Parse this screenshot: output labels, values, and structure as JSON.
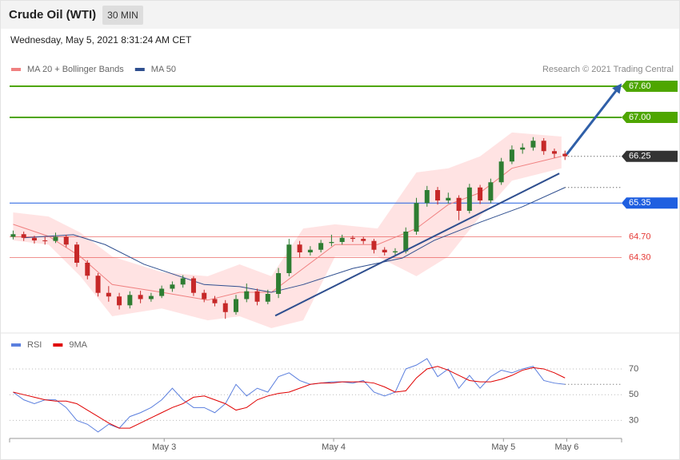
{
  "header": {
    "title": "Crude Oil (WTI)",
    "interval": "30 MIN",
    "datetime": "Wednesday, May 5, 2021 8:31:24 AM CET"
  },
  "chart_data": [
    {
      "type": "candlestick",
      "credit": "Research © 2021 Trading Central",
      "xlim": [
        0,
        173
      ],
      "ylim": [
        63.0,
        68.2
      ],
      "up_color": "#2e7d32",
      "down_color": "#c62828",
      "candles": {
        "x": [
          1,
          4,
          7,
          10,
          13,
          16,
          19,
          22,
          25,
          28,
          31,
          34,
          37,
          40,
          43,
          46,
          49,
          52,
          55,
          58,
          61,
          64,
          67,
          70,
          73,
          76,
          79,
          82,
          85,
          88,
          91,
          94,
          97,
          100,
          103,
          106,
          109,
          112,
          115,
          118,
          121,
          124,
          127,
          130,
          133,
          136,
          139,
          142,
          145,
          148,
          151,
          154,
          157
        ],
        "ohlc": [
          [
            64.7,
            64.82,
            64.65,
            64.75
          ],
          [
            64.75,
            64.8,
            64.62,
            64.68
          ],
          [
            64.68,
            64.72,
            64.57,
            64.63
          ],
          [
            64.63,
            64.7,
            64.55,
            64.62
          ],
          [
            64.62,
            64.78,
            64.58,
            64.7
          ],
          [
            64.7,
            64.74,
            64.5,
            64.55
          ],
          [
            64.55,
            64.6,
            64.12,
            64.2
          ],
          [
            64.2,
            64.25,
            63.88,
            63.95
          ],
          [
            63.95,
            64.0,
            63.55,
            63.62
          ],
          [
            63.62,
            63.75,
            63.45,
            63.55
          ],
          [
            63.55,
            63.62,
            63.3,
            63.38
          ],
          [
            63.38,
            63.65,
            63.32,
            63.58
          ],
          [
            63.58,
            63.66,
            63.42,
            63.5
          ],
          [
            63.5,
            63.62,
            63.45,
            63.56
          ],
          [
            63.56,
            63.76,
            63.52,
            63.7
          ],
          [
            63.7,
            63.84,
            63.64,
            63.78
          ],
          [
            63.78,
            63.96,
            63.72,
            63.9
          ],
          [
            63.9,
            63.94,
            63.56,
            63.62
          ],
          [
            63.62,
            63.68,
            63.44,
            63.5
          ],
          [
            63.5,
            63.56,
            63.36,
            63.42
          ],
          [
            63.42,
            63.48,
            63.12,
            63.25
          ],
          [
            63.25,
            63.58,
            63.2,
            63.5
          ],
          [
            63.5,
            63.8,
            63.44,
            63.65
          ],
          [
            63.65,
            63.7,
            63.38,
            63.45
          ],
          [
            63.45,
            63.68,
            63.4,
            63.6
          ],
          [
            63.6,
            64.1,
            63.52,
            64.0
          ],
          [
            64.0,
            64.66,
            63.94,
            64.55
          ],
          [
            64.55,
            64.62,
            64.3,
            64.4
          ],
          [
            64.4,
            64.52,
            64.34,
            64.45
          ],
          [
            64.45,
            64.64,
            64.4,
            64.58
          ],
          [
            64.58,
            64.74,
            64.52,
            64.6
          ],
          [
            64.6,
            64.74,
            64.55,
            64.68
          ],
          [
            64.68,
            64.72,
            64.6,
            64.66
          ],
          [
            64.66,
            64.7,
            64.56,
            64.62
          ],
          [
            64.62,
            64.66,
            64.38,
            64.45
          ],
          [
            64.45,
            64.5,
            64.34,
            64.4
          ],
          [
            64.4,
            64.48,
            64.35,
            64.42
          ],
          [
            64.42,
            64.88,
            64.38,
            64.8
          ],
          [
            64.8,
            65.45,
            64.74,
            65.35
          ],
          [
            65.35,
            65.68,
            65.28,
            65.6
          ],
          [
            65.6,
            65.66,
            65.32,
            65.4
          ],
          [
            65.4,
            65.55,
            65.34,
            65.45
          ],
          [
            65.45,
            65.5,
            65.02,
            65.2
          ],
          [
            65.2,
            65.72,
            65.15,
            65.65
          ],
          [
            65.65,
            65.7,
            65.33,
            65.4
          ],
          [
            65.4,
            65.82,
            65.35,
            65.75
          ],
          [
            65.75,
            66.22,
            65.7,
            66.15
          ],
          [
            66.15,
            66.46,
            66.1,
            66.38
          ],
          [
            66.38,
            66.5,
            66.3,
            66.42
          ],
          [
            66.42,
            66.62,
            66.36,
            66.55
          ],
          [
            66.55,
            66.6,
            66.28,
            66.35
          ],
          [
            66.35,
            66.4,
            66.22,
            66.3
          ],
          [
            66.3,
            66.36,
            66.18,
            66.25
          ]
        ]
      },
      "series": [
        {
          "name": "MA 20 + Bollinger Bands",
          "color": "#f08080",
          "band_color": "#ffe3e3",
          "x": [
            1,
            11,
            20,
            29,
            43,
            56,
            65,
            74,
            83,
            92,
            104,
            115,
            124,
            133,
            142,
            156
          ],
          "values": [
            64.94,
            64.71,
            64.32,
            63.78,
            63.63,
            63.48,
            63.63,
            63.63,
            64.09,
            64.55,
            64.55,
            64.86,
            65.32,
            65.55,
            66.02,
            66.25
          ],
          "upper": [
            65.17,
            65.09,
            64.78,
            64.32,
            64.02,
            63.94,
            64.17,
            63.94,
            64.86,
            64.94,
            64.86,
            65.94,
            66.02,
            66.25,
            66.71,
            66.63
          ],
          "lower": [
            64.63,
            64.55,
            63.94,
            63.17,
            63.32,
            63.09,
            63.17,
            62.94,
            63.09,
            64.32,
            64.32,
            63.94,
            64.32,
            65.09,
            65.78,
            66.02
          ]
        },
        {
          "name": "MA 50",
          "color": "#2f4f8f",
          "x": [
            4,
            18,
            27,
            38,
            55,
            65,
            74,
            83,
            97,
            111,
            120,
            133,
            145,
            157
          ],
          "values": [
            64.68,
            64.74,
            64.55,
            64.17,
            63.78,
            63.74,
            63.63,
            63.78,
            64.09,
            64.29,
            64.63,
            64.98,
            65.28,
            65.65
          ]
        }
      ],
      "trendline": {
        "x": [
          75.1,
          155.4
        ],
        "values": [
          63.18,
          65.92
        ],
        "color": "#2f4f8f"
      },
      "arrow": {
        "x": [
          157.5,
          172.2
        ],
        "values": [
          66.29,
          67.58
        ],
        "color": "#2f5fa8"
      },
      "levels": [
        {
          "value": 67.6,
          "label": "67.60",
          "color": "#4ea600",
          "style": "box",
          "line": "solid"
        },
        {
          "value": 67.0,
          "label": "67.00",
          "color": "#4ea600",
          "style": "box",
          "line": "solid"
        },
        {
          "value": 66.25,
          "label": "66.25",
          "color": "#333333",
          "style": "box",
          "line": "dotted"
        },
        {
          "value": 65.35,
          "label": "65.35",
          "color": "#1f5fe0",
          "style": "box",
          "line": "solid"
        },
        {
          "value": 64.7,
          "label": "64.70",
          "color": "#e53935",
          "style": "text",
          "line": "solid"
        },
        {
          "value": 64.3,
          "label": "64.30",
          "color": "#e53935",
          "style": "text",
          "line": "solid"
        }
      ]
    },
    {
      "type": "line",
      "xlim": [
        0,
        173
      ],
      "ylim": [
        16,
        83
      ],
      "yticks": [
        30,
        50,
        70
      ],
      "xticks": [
        {
          "value": 43.7,
          "label": "May 3"
        },
        {
          "value": 91.6,
          "label": "May 4"
        },
        {
          "value": 139.6,
          "label": "May 5"
        },
        {
          "value": 157.5,
          "label": "May 6"
        }
      ],
      "series": [
        {
          "name": "RSI",
          "color": "#5b7fde",
          "x": [
            1,
            4,
            7,
            10,
            13,
            16,
            19,
            22,
            25,
            28,
            31,
            34,
            37,
            40,
            43,
            46,
            49,
            52,
            55,
            58,
            61,
            64,
            67,
            70,
            73,
            76,
            79,
            82,
            85,
            88,
            91,
            94,
            97,
            100,
            103,
            106,
            109,
            112,
            115,
            118,
            121,
            124,
            127,
            130,
            133,
            136,
            139,
            142,
            145,
            148,
            151,
            154,
            157
          ],
          "values": [
            52,
            46,
            43,
            46,
            46,
            40,
            30,
            27,
            21,
            27,
            24,
            33,
            36,
            40,
            46,
            55,
            46,
            40,
            40,
            36,
            43,
            58,
            49,
            55,
            52,
            64,
            67,
            61,
            58,
            59,
            60,
            60,
            59,
            61,
            52,
            49,
            52,
            70,
            73,
            78,
            64,
            70,
            55,
            65,
            55,
            64,
            69,
            67,
            70,
            72,
            61,
            59,
            58
          ]
        },
        {
          "name": "9MA",
          "color": "#e00000",
          "x": [
            1,
            4,
            7,
            10,
            13,
            16,
            19,
            22,
            25,
            28,
            31,
            34,
            37,
            40,
            43,
            46,
            49,
            52,
            55,
            58,
            61,
            64,
            67,
            70,
            73,
            76,
            79,
            82,
            85,
            88,
            91,
            94,
            97,
            100,
            103,
            106,
            109,
            112,
            115,
            118,
            121,
            124,
            127,
            130,
            133,
            136,
            139,
            142,
            145,
            148,
            151,
            154,
            157
          ],
          "values": [
            52,
            50,
            48,
            46,
            45,
            45,
            43,
            38,
            33,
            28,
            24,
            24,
            28,
            32,
            36,
            40,
            43,
            48,
            49,
            46,
            43,
            38,
            40,
            46,
            49,
            51,
            52,
            55,
            58,
            59,
            59,
            60,
            60,
            60,
            59,
            56,
            52,
            53,
            63,
            70,
            72,
            69,
            65,
            61,
            60,
            60,
            62,
            65,
            69,
            71,
            70,
            67,
            63
          ]
        }
      ]
    }
  ]
}
